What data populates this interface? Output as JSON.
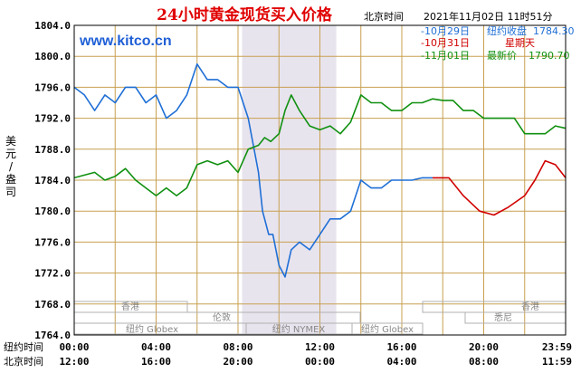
{
  "header": {
    "title": "24小时黄金现货买入价格",
    "location": "北京时间",
    "timestamp": "2021年11月02日 11时51分",
    "brand": "www.kitco.cn"
  },
  "legend": {
    "items": [
      {
        "date": "-10月29日",
        "label": "纽约收盘",
        "value": "1784.30",
        "color": "#1f6fd6"
      },
      {
        "date": "-10月31日",
        "label": "星期天",
        "value": "",
        "color": "#d00000"
      },
      {
        "date": "-11月01日",
        "label": "最新价",
        "value": "1790.70",
        "color": "#109010"
      }
    ]
  },
  "axis": {
    "ylabel": "美元/盎司",
    "row1_label": "纽约时间",
    "row2_label": "北京时间",
    "row1_ticks": [
      "00:00",
      "04:00",
      "08:00",
      "12:00",
      "16:00",
      "20:00",
      "23:59"
    ],
    "row2_ticks": [
      "12:00",
      "16:00",
      "20:00",
      "00:00",
      "04:00",
      "08:00",
      "11:59"
    ]
  },
  "markets": [
    {
      "name": "香港"
    },
    {
      "name": "伦敦"
    },
    {
      "name": "纽约 Globex"
    },
    {
      "name": "纽约 NYMEX"
    },
    {
      "name": "纽约 Globex"
    },
    {
      "name": "香港"
    },
    {
      "name": "悉尼"
    }
  ],
  "colors": {
    "grid": "#c8a050",
    "frame": "#000000",
    "shade": "#e8e4ee",
    "blue": "#1f6fd6",
    "red": "#d00000",
    "green": "#109010"
  },
  "chart_data": {
    "type": "line",
    "ylim": [
      1764,
      1804
    ],
    "yticks": [
      1764.0,
      1768.0,
      1772.0,
      1776.0,
      1780.0,
      1784.0,
      1788.0,
      1792.0,
      1796.0,
      1800.0,
      1804.0
    ],
    "xlim": [
      0,
      24
    ],
    "x_unit": "hours since 00:00 New York time",
    "shaded_range": [
      8.2,
      12.8
    ],
    "series": [
      {
        "name": "10月29日 纽约收盘",
        "color": "#1f6fd6",
        "x": [
          0,
          0.5,
          1,
          1.5,
          2,
          2.5,
          3,
          3.5,
          4,
          4.5,
          5,
          5.5,
          6,
          6.5,
          7,
          7.5,
          8,
          8.5,
          9,
          9.2,
          9.5,
          9.7,
          10,
          10.3,
          10.6,
          11,
          11.5,
          12,
          12.5,
          13,
          13.5,
          14,
          14.5,
          15,
          15.5,
          16,
          16.5,
          17,
          17.5
        ],
        "y": [
          1796,
          1795,
          1793,
          1795,
          1794,
          1796,
          1796,
          1794,
          1795,
          1792,
          1793,
          1795,
          1799,
          1797,
          1797,
          1796,
          1796,
          1792,
          1785,
          1780,
          1777,
          1777,
          1773,
          1771.5,
          1775,
          1776,
          1775,
          1777,
          1779,
          1779,
          1780,
          1784,
          1783,
          1783,
          1784,
          1784,
          1784,
          1784.3,
          1784.3
        ]
      },
      {
        "name": "10月31日 星期天",
        "color": "#d00000",
        "x": [
          17.5,
          18.3,
          19,
          19.8,
          20.5,
          21.2,
          22,
          22.5,
          23,
          23.5,
          24
        ],
        "y": [
          1784.3,
          1784.3,
          1782,
          1780,
          1779.5,
          1780.5,
          1782,
          1784,
          1786.5,
          1786,
          1784.3
        ]
      },
      {
        "name": "11月01日 最新价",
        "color": "#109010",
        "x": [
          0,
          1,
          1.5,
          2,
          2.5,
          3,
          3.5,
          4,
          4.5,
          5,
          5.5,
          6,
          6.5,
          7,
          7.5,
          8,
          8.5,
          9,
          9.3,
          9.6,
          10,
          10.3,
          10.6,
          11,
          11.5,
          12,
          12.5,
          13,
          13.5,
          14,
          14.5,
          15,
          15.5,
          16,
          16.5,
          17,
          17.5,
          18,
          18.5,
          19,
          19.5,
          20,
          20.5,
          21,
          21.5,
          22,
          22.5,
          23,
          23.5,
          24
        ],
        "y": [
          1784.3,
          1785,
          1784,
          1784.5,
          1785.5,
          1784,
          1783,
          1782,
          1783,
          1782,
          1783,
          1786,
          1786.5,
          1786,
          1786.5,
          1785,
          1788,
          1788.5,
          1789.5,
          1789,
          1790,
          1793,
          1795,
          1793,
          1791,
          1790.5,
          1791,
          1790,
          1791.5,
          1795,
          1794,
          1794,
          1793,
          1793,
          1794,
          1794,
          1794.5,
          1794.3,
          1794.3,
          1793,
          1793,
          1792,
          1792,
          1792,
          1792,
          1790,
          1790,
          1790,
          1791,
          1790.7
        ]
      }
    ]
  }
}
